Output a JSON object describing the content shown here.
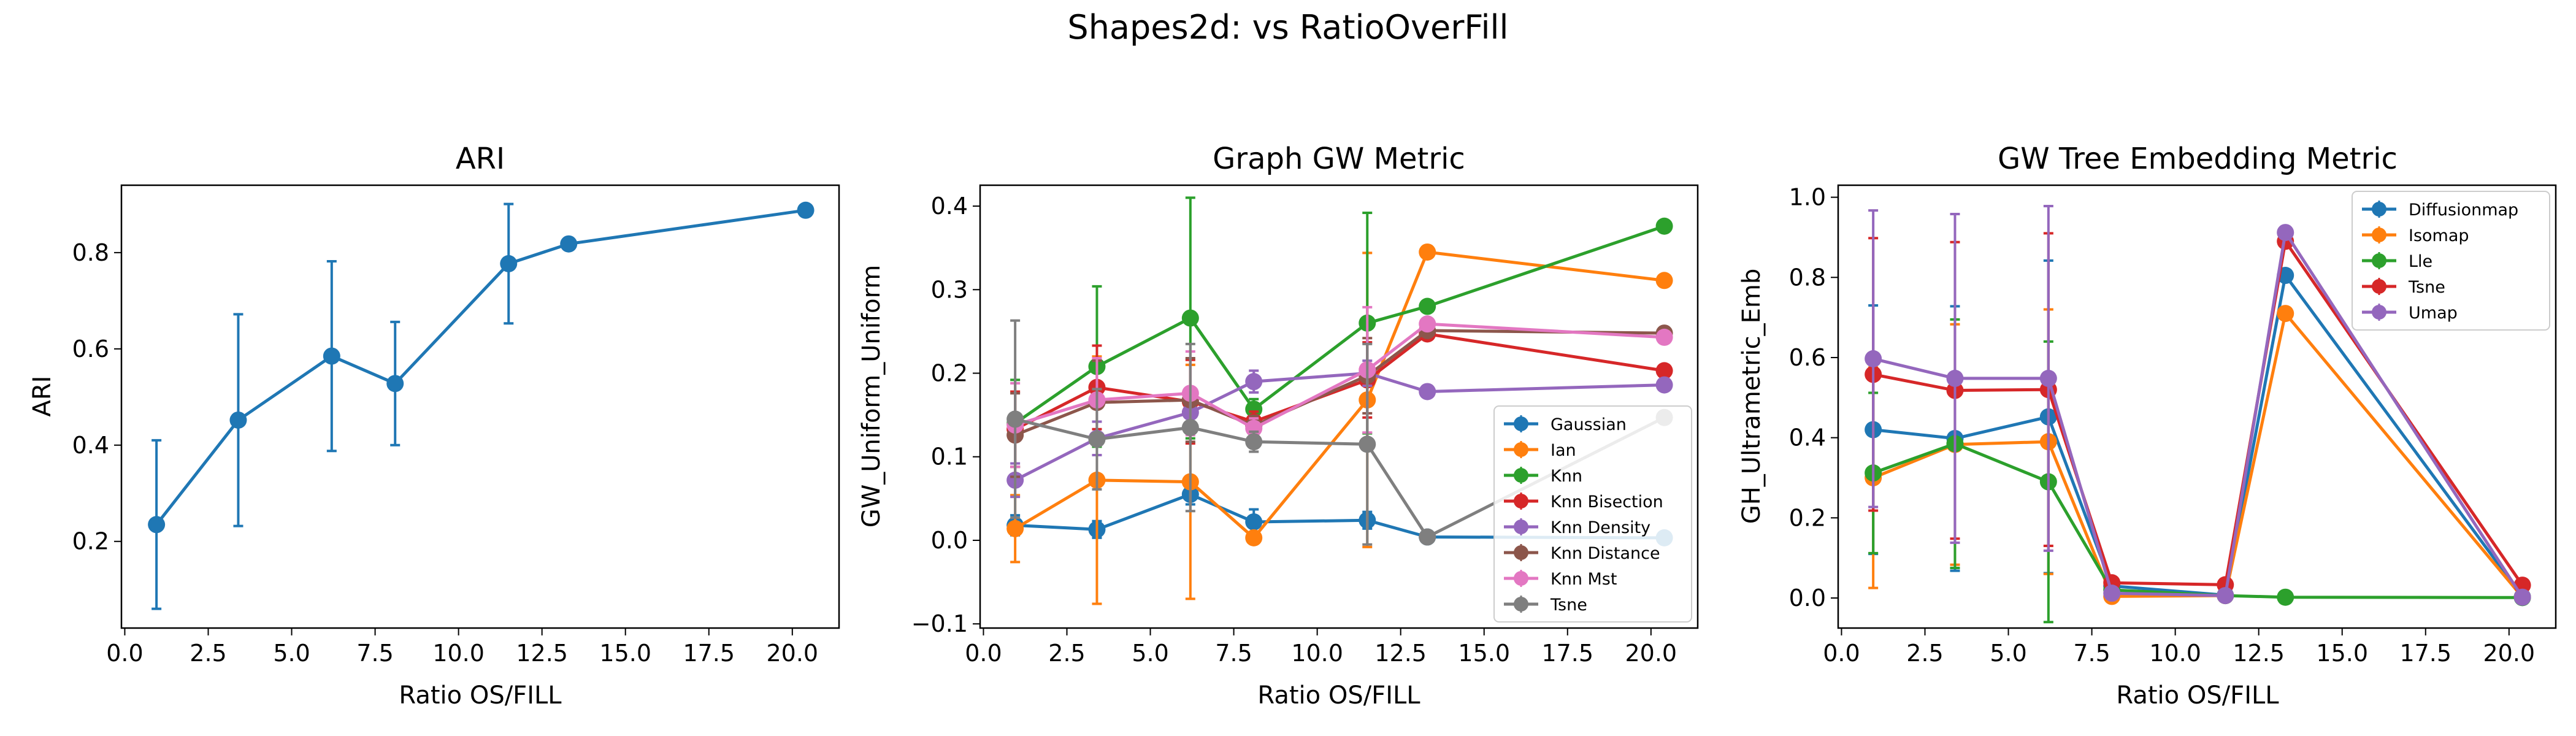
{
  "figure_title": "Shapes2d: vs RatioOverFill",
  "chart_data": [
    {
      "type": "line",
      "title": "ARI",
      "xlabel": "Ratio OS/FILL",
      "ylabel": "ARI",
      "xlim": [
        -0.1,
        21.4
      ],
      "ylim": [
        0.02,
        0.94
      ],
      "xticks": [
        0.0,
        2.5,
        5.0,
        7.5,
        10.0,
        12.5,
        15.0,
        17.5,
        20.0
      ],
      "yticks": [
        0.2,
        0.4,
        0.6,
        0.8
      ],
      "legend": null,
      "series": [
        {
          "name": "",
          "color": "#1f77b4",
          "marker": "circle",
          "points": [
            {
              "x": 0.95,
              "y": 0.235,
              "err": 0.175
            },
            {
              "x": 3.4,
              "y": 0.452,
              "err": 0.22
            },
            {
              "x": 6.2,
              "y": 0.585,
              "err": 0.197
            },
            {
              "x": 8.1,
              "y": 0.528,
              "err": 0.128
            },
            {
              "x": 11.5,
              "y": 0.777,
              "err": 0.124
            },
            {
              "x": 13.3,
              "y": 0.818,
              "err": 0
            },
            {
              "x": 20.4,
              "y": 0.888,
              "err": 0
            }
          ]
        }
      ]
    },
    {
      "type": "line",
      "title": "Graph GW Metric",
      "xlabel": "Ratio OS/FILL",
      "ylabel": "GW_Uniform_Uniform",
      "xlim": [
        -0.1,
        21.4
      ],
      "ylim": [
        -0.105,
        0.425
      ],
      "xticks": [
        0.0,
        2.5,
        5.0,
        7.5,
        10.0,
        12.5,
        15.0,
        17.5,
        20.0
      ],
      "yticks": [
        -0.1,
        0.0,
        0.1,
        0.2,
        0.3,
        0.4
      ],
      "legend": "lower-right",
      "series": [
        {
          "name": "Gaussian",
          "color": "#1f77b4",
          "marker": "circle",
          "points": [
            {
              "x": 0.95,
              "y": 0.018,
              "err": 0.012
            },
            {
              "x": 3.4,
              "y": 0.013,
              "err": 0.01
            },
            {
              "x": 6.2,
              "y": 0.055,
              "err": 0.012
            },
            {
              "x": 8.1,
              "y": 0.022,
              "err": 0.015
            },
            {
              "x": 11.5,
              "y": 0.024,
              "err": 0.01
            },
            {
              "x": 13.3,
              "y": 0.004,
              "err": 0
            },
            {
              "x": 20.4,
              "y": 0.003,
              "err": 0
            }
          ]
        },
        {
          "name": "Ian",
          "color": "#ff7f0e",
          "marker": "circle",
          "points": [
            {
              "x": 0.95,
              "y": 0.014,
              "err": 0.04
            },
            {
              "x": 3.4,
              "y": 0.072,
              "err": 0.148
            },
            {
              "x": 6.2,
              "y": 0.07,
              "err": 0.14
            },
            {
              "x": 8.1,
              "y": 0.003,
              "err": 0.002
            },
            {
              "x": 11.5,
              "y": 0.168,
              "err": 0.176
            },
            {
              "x": 13.3,
              "y": 0.345,
              "err": 0
            },
            {
              "x": 20.4,
              "y": 0.311,
              "err": 0
            }
          ]
        },
        {
          "name": "Knn",
          "color": "#2ca02c",
          "marker": "circle",
          "points": [
            {
              "x": 0.95,
              "y": 0.14,
              "err": 0.052
            },
            {
              "x": 3.4,
              "y": 0.208,
              "err": 0.096
            },
            {
              "x": 6.2,
              "y": 0.266,
              "err": 0.144
            },
            {
              "x": 8.1,
              "y": 0.157,
              "err": 0.012
            },
            {
              "x": 11.5,
              "y": 0.26,
              "err": 0.132
            },
            {
              "x": 13.3,
              "y": 0.28,
              "err": 0
            },
            {
              "x": 20.4,
              "y": 0.376,
              "err": 0
            }
          ]
        },
        {
          "name": "Knn Bisection",
          "color": "#d62728",
          "marker": "circle",
          "points": [
            {
              "x": 0.95,
              "y": 0.133,
              "err": 0.045
            },
            {
              "x": 3.4,
              "y": 0.183,
              "err": 0.05
            },
            {
              "x": 6.2,
              "y": 0.166,
              "err": 0.05
            },
            {
              "x": 8.1,
              "y": 0.142,
              "err": 0.012
            },
            {
              "x": 11.5,
              "y": 0.192,
              "err": 0.045
            },
            {
              "x": 13.3,
              "y": 0.247,
              "err": 0
            },
            {
              "x": 20.4,
              "y": 0.203,
              "err": 0
            }
          ]
        },
        {
          "name": "Knn Density",
          "color": "#9467bd",
          "marker": "circle",
          "points": [
            {
              "x": 0.95,
              "y": 0.072,
              "err": 0.02
            },
            {
              "x": 3.4,
              "y": 0.122,
              "err": 0.02
            },
            {
              "x": 6.2,
              "y": 0.153,
              "err": 0.02
            },
            {
              "x": 8.1,
              "y": 0.19,
              "err": 0.013
            },
            {
              "x": 11.5,
              "y": 0.2,
              "err": 0.015
            },
            {
              "x": 13.3,
              "y": 0.178,
              "err": 0
            },
            {
              "x": 20.4,
              "y": 0.186,
              "err": 0
            }
          ]
        },
        {
          "name": "Knn Distance",
          "color": "#8c564b",
          "marker": "circle",
          "points": [
            {
              "x": 0.95,
              "y": 0.126,
              "err": 0.05
            },
            {
              "x": 3.4,
              "y": 0.165,
              "err": 0.05
            },
            {
              "x": 6.2,
              "y": 0.168,
              "err": 0.05
            },
            {
              "x": 8.1,
              "y": 0.137,
              "err": 0.012
            },
            {
              "x": 11.5,
              "y": 0.197,
              "err": 0.045
            },
            {
              "x": 13.3,
              "y": 0.251,
              "err": 0
            },
            {
              "x": 20.4,
              "y": 0.248,
              "err": 0
            }
          ]
        },
        {
          "name": "Knn Mst",
          "color": "#e377c2",
          "marker": "circle",
          "points": [
            {
              "x": 0.95,
              "y": 0.138,
              "err": 0.05
            },
            {
              "x": 3.4,
              "y": 0.168,
              "err": 0.05
            },
            {
              "x": 6.2,
              "y": 0.176,
              "err": 0.05
            },
            {
              "x": 8.1,
              "y": 0.134,
              "err": 0.012
            },
            {
              "x": 11.5,
              "y": 0.204,
              "err": 0.075
            },
            {
              "x": 13.3,
              "y": 0.259,
              "err": 0
            },
            {
              "x": 20.4,
              "y": 0.243,
              "err": 0
            }
          ]
        },
        {
          "name": "Tsne",
          "color": "#7f7f7f",
          "marker": "circle",
          "points": [
            {
              "x": 0.95,
              "y": 0.145,
              "err": 0.118
            },
            {
              "x": 3.4,
              "y": 0.121,
              "err": 0.06
            },
            {
              "x": 6.2,
              "y": 0.135,
              "err": 0.1
            },
            {
              "x": 8.1,
              "y": 0.118,
              "err": 0.012
            },
            {
              "x": 11.5,
              "y": 0.115,
              "err": 0.12
            },
            {
              "x": 13.3,
              "y": 0.004,
              "err": 0
            },
            {
              "x": 20.4,
              "y": 0.147,
              "err": 0
            }
          ]
        }
      ]
    },
    {
      "type": "line",
      "title": "GW Tree Embedding Metric",
      "xlabel": "Ratio OS/FILL",
      "ylabel": "GH_Ultrametric_Emb",
      "xlim": [
        -0.1,
        21.4
      ],
      "ylim": [
        -0.075,
        1.03
      ],
      "xticks": [
        0.0,
        2.5,
        5.0,
        7.5,
        10.0,
        12.5,
        15.0,
        17.5,
        20.0
      ],
      "yticks": [
        0.0,
        0.2,
        0.4,
        0.6,
        0.8,
        1.0
      ],
      "legend": "top-right",
      "series": [
        {
          "name": "Diffusionmap",
          "color": "#1f77b4",
          "marker": "circle",
          "points": [
            {
              "x": 0.95,
              "y": 0.42,
              "err": 0.31
            },
            {
              "x": 3.4,
              "y": 0.398,
              "err": 0.33
            },
            {
              "x": 6.2,
              "y": 0.452,
              "err": 0.39
            },
            {
              "x": 8.1,
              "y": 0.03,
              "err": 0
            },
            {
              "x": 11.5,
              "y": 0.007,
              "err": 0
            },
            {
              "x": 13.3,
              "y": 0.805,
              "err": 0
            },
            {
              "x": 20.4,
              "y": 0.003,
              "err": 0
            }
          ]
        },
        {
          "name": "Isomap",
          "color": "#ff7f0e",
          "marker": "circle",
          "points": [
            {
              "x": 0.95,
              "y": 0.3,
              "err": 0.275
            },
            {
              "x": 3.4,
              "y": 0.383,
              "err": 0.3
            },
            {
              "x": 6.2,
              "y": 0.39,
              "err": 0.33
            },
            {
              "x": 8.1,
              "y": 0.004,
              "err": 0
            },
            {
              "x": 11.5,
              "y": 0.006,
              "err": 0
            },
            {
              "x": 13.3,
              "y": 0.71,
              "err": 0
            },
            {
              "x": 20.4,
              "y": 0.002,
              "err": 0
            }
          ]
        },
        {
          "name": "Lle",
          "color": "#2ca02c",
          "marker": "circle",
          "points": [
            {
              "x": 0.95,
              "y": 0.312,
              "err": 0.2
            },
            {
              "x": 3.4,
              "y": 0.385,
              "err": 0.31
            },
            {
              "x": 6.2,
              "y": 0.29,
              "err": 0.35
            },
            {
              "x": 8.1,
              "y": 0.02,
              "err": 0
            },
            {
              "x": 11.5,
              "y": 0.006,
              "err": 0
            },
            {
              "x": 13.3,
              "y": 0.002,
              "err": 0
            },
            {
              "x": 20.4,
              "y": 0.001,
              "err": 0
            }
          ]
        },
        {
          "name": "Tsne",
          "color": "#d62728",
          "marker": "circle",
          "points": [
            {
              "x": 0.95,
              "y": 0.558,
              "err": 0.34
            },
            {
              "x": 3.4,
              "y": 0.518,
              "err": 0.37
            },
            {
              "x": 6.2,
              "y": 0.52,
              "err": 0.39
            },
            {
              "x": 8.1,
              "y": 0.038,
              "err": 0
            },
            {
              "x": 11.5,
              "y": 0.033,
              "err": 0
            },
            {
              "x": 13.3,
              "y": 0.89,
              "err": 0
            },
            {
              "x": 20.4,
              "y": 0.032,
              "err": 0
            }
          ]
        },
        {
          "name": "Umap",
          "color": "#9467bd",
          "marker": "circle",
          "points": [
            {
              "x": 0.95,
              "y": 0.597,
              "err": 0.37
            },
            {
              "x": 3.4,
              "y": 0.548,
              "err": 0.41
            },
            {
              "x": 6.2,
              "y": 0.548,
              "err": 0.43
            },
            {
              "x": 8.1,
              "y": 0.012,
              "err": 0
            },
            {
              "x": 11.5,
              "y": 0.006,
              "err": 0
            },
            {
              "x": 13.3,
              "y": 0.912,
              "err": 0
            },
            {
              "x": 20.4,
              "y": 0.002,
              "err": 0
            }
          ]
        }
      ]
    }
  ]
}
